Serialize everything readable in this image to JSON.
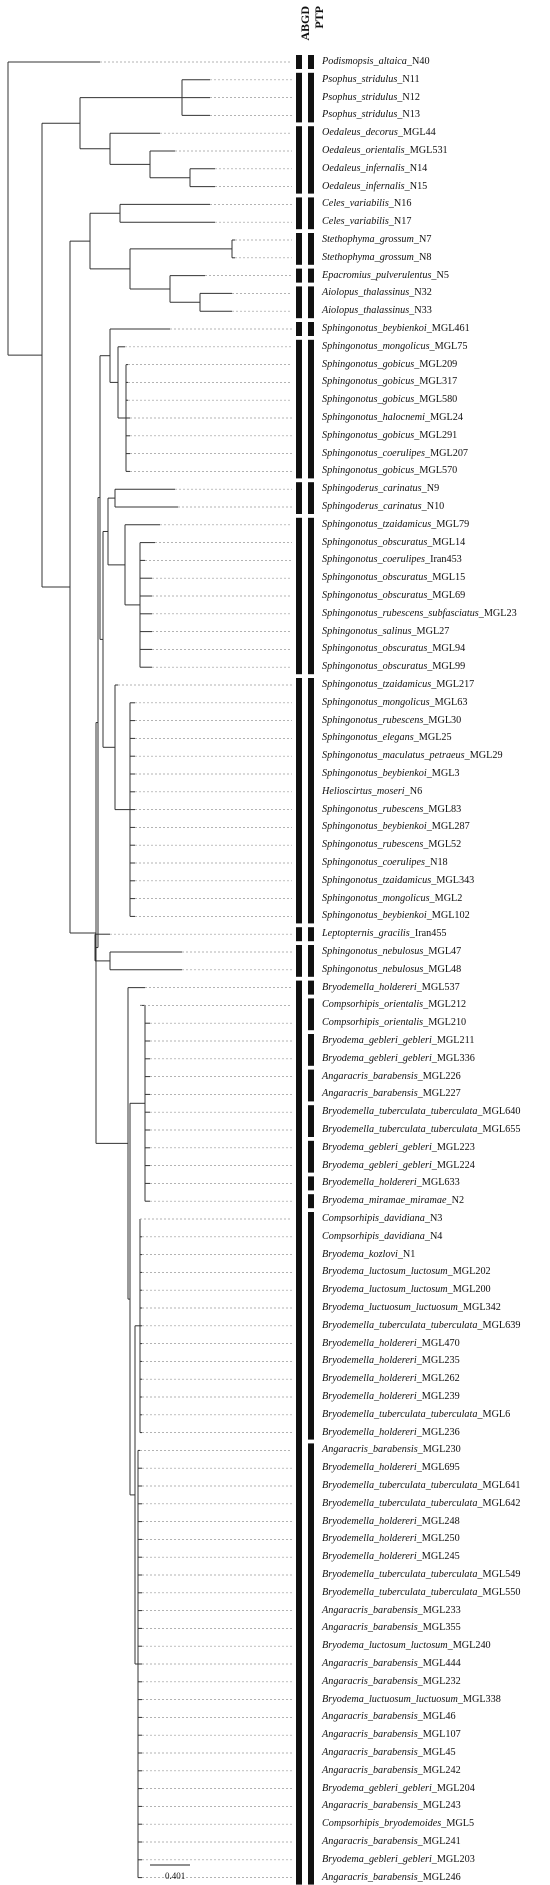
{
  "headers": {
    "ptp": "PTP",
    "abgd": "ABGD"
  },
  "scale_label": "0.401",
  "taxa": [
    {
      "name": "Podismopsis_altaica",
      "suffix": "_N40"
    },
    {
      "name": "Psophus_stridulus",
      "suffix": "_N11"
    },
    {
      "name": "Psophus_stridulus",
      "suffix": "_N12"
    },
    {
      "name": "Psophus_stridulus",
      "suffix": "_N13"
    },
    {
      "name": "Oedaleus_decorus",
      "suffix": "_MGL44"
    },
    {
      "name": "Oedaleus_orientalis",
      "suffix": "_MGL531"
    },
    {
      "name": "Oedaleus_infernalis",
      "suffix": "_N14"
    },
    {
      "name": "Oedaleus_infernalis",
      "suffix": "_N15"
    },
    {
      "name": "Celes_variabilis",
      "suffix": "_N16"
    },
    {
      "name": "Celes_variabilis",
      "suffix": "_N17"
    },
    {
      "name": "Stethophyma_grossum",
      "suffix": "_N7"
    },
    {
      "name": "Stethophyma_grossum",
      "suffix": "_N8"
    },
    {
      "name": "Epacromius_pulverulentus",
      "suffix": "_N5"
    },
    {
      "name": "Aiolopus_thalassinus",
      "suffix": "_N32"
    },
    {
      "name": "Aiolopus_thalassinus",
      "suffix": "_N33"
    },
    {
      "name": "Sphingonotus_beybienkoi",
      "suffix": "_MGL461"
    },
    {
      "name": "Sphingonotus_mongolicus",
      "suffix": "_MGL75"
    },
    {
      "name": "Sphingonotus_gobicus",
      "suffix": "_MGL209"
    },
    {
      "name": "Sphingonotus_gobicus",
      "suffix": "_MGL317"
    },
    {
      "name": "Sphingonotus_gobicus",
      "suffix": "_MGL580"
    },
    {
      "name": "Sphingonotus_halocnemi",
      "suffix": "_MGL24"
    },
    {
      "name": "Sphingonotus_gobicus",
      "suffix": "_MGL291"
    },
    {
      "name": "Sphingonotus_coerulipes",
      "suffix": "_MGL207"
    },
    {
      "name": "Sphingonotus_gobicus",
      "suffix": "_MGL570"
    },
    {
      "name": "Sphingoderus_carinatus",
      "suffix": "_N9"
    },
    {
      "name": "Sphingoderus_carinatus",
      "suffix": "_N10"
    },
    {
      "name": "Sphingonotus_tzaidamicus",
      "suffix": "_MGL79"
    },
    {
      "name": "Sphingonotus_obscuratus",
      "suffix": "_MGL14"
    },
    {
      "name": "Sphingonotus_coerulipes",
      "suffix": "_Iran453"
    },
    {
      "name": "Sphingonotus_obscuratus",
      "suffix": "_MGL15"
    },
    {
      "name": "Sphingonotus_obscuratus",
      "suffix": "_MGL69"
    },
    {
      "name": "Sphingonotus_rubescens_subfasciatus",
      "suffix": "_MGL23"
    },
    {
      "name": "Sphingonotus_salinus",
      "suffix": "_MGL27"
    },
    {
      "name": "Sphingonotus_obscuratus",
      "suffix": "_MGL94"
    },
    {
      "name": "Sphingonotus_obscuratus",
      "suffix": "_MGL99"
    },
    {
      "name": "Sphingonotus_tzaidamicus",
      "suffix": "_MGL217"
    },
    {
      "name": "Sphingonotus_mongolicus",
      "suffix": "_MGL63"
    },
    {
      "name": "Sphingonotus_rubescens",
      "suffix": "_MGL30"
    },
    {
      "name": "Sphingonotus_elegans",
      "suffix": "_MGL25"
    },
    {
      "name": "Sphingonotus_maculatus_petraeus",
      "suffix": "_MGL29"
    },
    {
      "name": "Sphingonotus_beybienkoi",
      "suffix": "_MGL3"
    },
    {
      "name": "Helioscirtus_moseri",
      "suffix": "_N6"
    },
    {
      "name": "Sphingonotus_rubescens",
      "suffix": "_MGL83"
    },
    {
      "name": "Sphingonotus_beybienkoi",
      "suffix": "_MGL287"
    },
    {
      "name": "Sphingonotus_rubescens",
      "suffix": "_MGL52"
    },
    {
      "name": "Sphingonotus_coerulipes",
      "suffix": "_N18"
    },
    {
      "name": "Sphingonotus_tzaidamicus",
      "suffix": "_MGL343"
    },
    {
      "name": "Sphingonotus_mongolicus",
      "suffix": "_MGL2"
    },
    {
      "name": "Sphingonotus_beybienkoi",
      "suffix": "_MGL102"
    },
    {
      "name": "Leptopternis_gracilis",
      "suffix": "_Iran455"
    },
    {
      "name": "Sphingonotus_nebulosus",
      "suffix": "_MGL47"
    },
    {
      "name": "Sphingonotus_nebulosus",
      "suffix": "_MGL48"
    },
    {
      "name": "Bryodemella_holdereri",
      "suffix": "_MGL537"
    },
    {
      "name": "Compsorhipis_orientalis",
      "suffix": "_MGL212"
    },
    {
      "name": "Compsorhipis_orientalis",
      "suffix": "_MGL210"
    },
    {
      "name": "Bryodema_gebleri_gebleri",
      "suffix": "_MGL211"
    },
    {
      "name": "Bryodema_gebleri_gebleri",
      "suffix": "_MGL336"
    },
    {
      "name": "Angaracris_barabensis",
      "suffix": "_MGL226"
    },
    {
      "name": "Angaracris_barabensis",
      "suffix": "_MGL227"
    },
    {
      "name": "Bryodemella_tuberculata_tuberculata",
      "suffix": "_MGL640"
    },
    {
      "name": "Bryodemella_tuberculata_tuberculata",
      "suffix": "_MGL655"
    },
    {
      "name": "Bryodema_gebleri_gebleri",
      "suffix": "_MGL223"
    },
    {
      "name": "Bryodema_gebleri_gebleri",
      "suffix": "_MGL224"
    },
    {
      "name": "Bryodemella_holdereri",
      "suffix": "_MGL633"
    },
    {
      "name": "Bryodema_miramae_miramae",
      "suffix": "_N2"
    },
    {
      "name": "Compsorhipis_davidiana",
      "suffix": "_N3"
    },
    {
      "name": "Compsorhipis_davidiana",
      "suffix": "_N4"
    },
    {
      "name": "Bryodema_kozlovi",
      "suffix": "_N1"
    },
    {
      "name": "Bryodema_luctosum_luctosum",
      "suffix": "_MGL202"
    },
    {
      "name": "Bryodema_luctosum_luctosum",
      "suffix": "_MGL200"
    },
    {
      "name": "Bryodema_luctuosum_luctuosum",
      "suffix": "_MGL342"
    },
    {
      "name": "Bryodemella_tuberculata_tuberculata",
      "suffix": "_MGL639"
    },
    {
      "name": "Bryodemella_holdereri",
      "suffix": "_MGL470"
    },
    {
      "name": "Bryodemella_holdereri",
      "suffix": "_MGL235"
    },
    {
      "name": "Bryodemella_holdereri",
      "suffix": "_MGL262"
    },
    {
      "name": "Bryodemella_holdereri",
      "suffix": "_MGL239"
    },
    {
      "name": "Bryodemella_tuberculata_tuberculata",
      "suffix": "_MGL6"
    },
    {
      "name": "Bryodemella_holdereri",
      "suffix": "_MGL236"
    },
    {
      "name": "Angaracris_barabensis",
      "suffix": "_MGL230"
    },
    {
      "name": "Bryodemella_holdereri",
      "suffix": "_MGL695"
    },
    {
      "name": "Bryodemella_tuberculata_tuberculata",
      "suffix": "_MGL641"
    },
    {
      "name": "Bryodemella_tuberculata_tuberculata",
      "suffix": "_MGL642"
    },
    {
      "name": "Bryodemella_holdereri",
      "suffix": "_MGL248"
    },
    {
      "name": "Bryodemella_holdereri",
      "suffix": "_MGL250"
    },
    {
      "name": "Bryodemella_holdereri",
      "suffix": "_MGL245"
    },
    {
      "name": "Bryodemella_tuberculata_tuberculata",
      "suffix": "_MGL549"
    },
    {
      "name": "Bryodemella_tuberculata_tuberculata",
      "suffix": "_MGL550"
    },
    {
      "name": "Angaracris_barabensis",
      "suffix": "_MGL233"
    },
    {
      "name": "Angaracris_barabensis",
      "suffix": "_MGL355"
    },
    {
      "name": "Bryodema_luctosum_luctosum",
      "suffix": "_MGL240"
    },
    {
      "name": "Angaracris_barabensis",
      "suffix": "_MGL444"
    },
    {
      "name": "Angaracris_barabensis",
      "suffix": "_MGL232"
    },
    {
      "name": "Bryodema_luctuosum_luctuosum",
      "suffix": "_MGL338"
    },
    {
      "name": "Angaracris_barabensis",
      "suffix": "_MGL46"
    },
    {
      "name": "Angaracris_barabensis",
      "suffix": "_MGL107"
    },
    {
      "name": "Angaracris_barabensis",
      "suffix": "_MGL45"
    },
    {
      "name": "Angaracris_barabensis",
      "suffix": "_MGL242"
    },
    {
      "name": "Bryodema_gebleri_gebleri",
      "suffix": "_MGL204"
    },
    {
      "name": "Angaracris_barabensis",
      "suffix": "_MGL243"
    },
    {
      "name": "Compsorhipis_bryodemoides",
      "suffix": "_MGL5"
    },
    {
      "name": "Angaracris_barabensis",
      "suffix": "_MGL241"
    },
    {
      "name": "Bryodema_gebleri_gebleri",
      "suffix": "_MGL203"
    },
    {
      "name": "Angaracris_barabensis",
      "suffix": "_MGL246"
    }
  ]
}
